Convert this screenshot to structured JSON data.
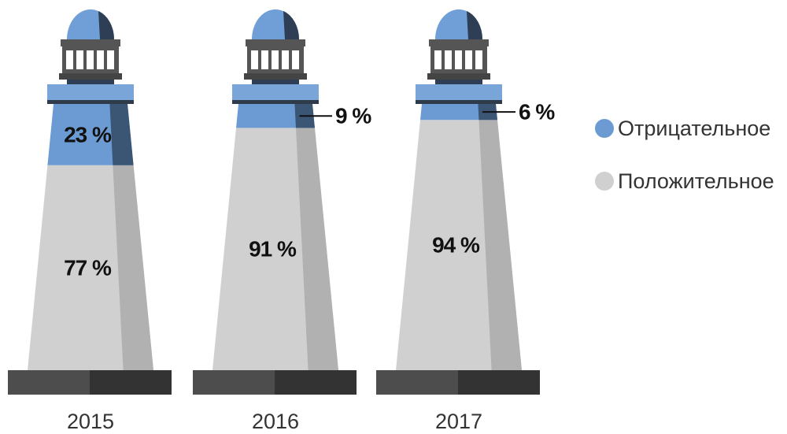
{
  "chart_data": {
    "type": "bar",
    "stacked": true,
    "categories": [
      "2015",
      "2016",
      "2017"
    ],
    "series": [
      {
        "name": "Отрицательное",
        "color": "#6b9bd2",
        "values": [
          23,
          9,
          6
        ],
        "value_labels": [
          "23 %",
          "9 %",
          "6 %"
        ]
      },
      {
        "name": "Положительное",
        "color": "#d0d0d0",
        "values": [
          77,
          91,
          94
        ],
        "value_labels": [
          "77 %",
          "91 %",
          "94 %"
        ]
      }
    ],
    "legend": "right"
  }
}
